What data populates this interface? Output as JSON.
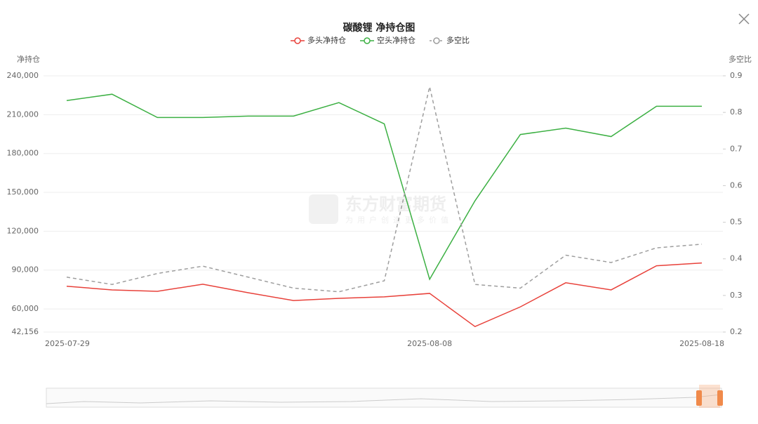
{
  "chart_data": {
    "type": "line",
    "title": "碳酸锂 净持仓图",
    "y_label": "净持仓",
    "y2_label": "多空比",
    "watermark": "东方财富期货",
    "watermark_slogan": "为用户创造更多价值",
    "categories": [
      "2025-07-29",
      null,
      null,
      null,
      null,
      null,
      null,
      null,
      "2025-08-08",
      null,
      null,
      null,
      null,
      null,
      "2025-08-18"
    ],
    "series": [
      {
        "name": "多头净持仓",
        "color": "#e8413a",
        "dashed": false,
        "values": [
          77500,
          74700,
          73600,
          79100,
          72500,
          66500,
          68200,
          69300,
          72000,
          46400,
          61600,
          80200,
          74700,
          93300,
          95500
        ]
      },
      {
        "name": "空头净持仓",
        "color": "#3cb043",
        "dashed": false,
        "values": [
          220900,
          225800,
          207800,
          207800,
          208900,
          208900,
          219300,
          202900,
          82900,
          143500,
          194700,
          199600,
          193100,
          216500,
          216500
        ]
      },
      {
        "name": "多空比",
        "color": "#9e9e9e",
        "dashed": true,
        "axis": "y2",
        "values": [
          0.35,
          0.33,
          0.36,
          0.38,
          0.35,
          0.32,
          0.31,
          0.34,
          0.87,
          0.33,
          0.32,
          0.41,
          0.39,
          0.43,
          0.44
        ]
      }
    ],
    "ylim": [
      42156,
      240000
    ],
    "yticks": [
      {
        "value": 42156,
        "label": "42,156"
      },
      {
        "value": 60000,
        "label": "60,000"
      },
      {
        "value": 90000,
        "label": "90,000"
      },
      {
        "value": 120000,
        "label": "120,000"
      },
      {
        "value": 150000,
        "label": "150,000"
      },
      {
        "value": 180000,
        "label": "180,000"
      },
      {
        "value": 210000,
        "label": "210,000"
      },
      {
        "value": 240000,
        "label": "240,000"
      }
    ],
    "y2lim": [
      0.2,
      0.9
    ],
    "y2ticks": [
      0.2,
      0.3,
      0.4,
      0.5,
      0.6,
      0.7,
      0.8,
      0.9
    ],
    "grid": true
  }
}
